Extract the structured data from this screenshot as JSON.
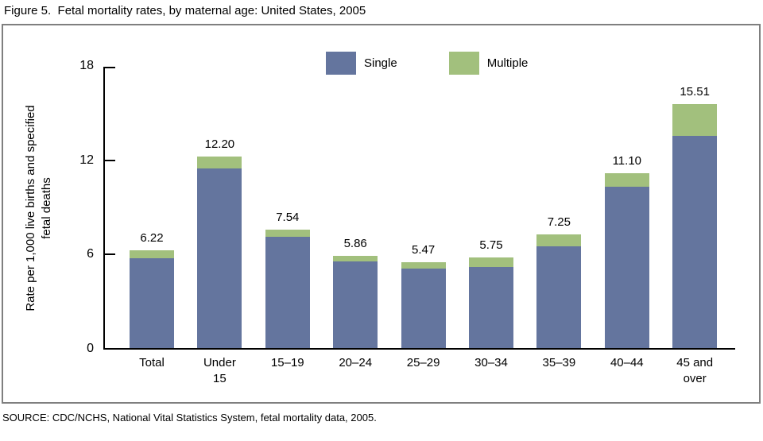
{
  "title": "Figure 5.  Fetal mortality rates, by maternal age: United States, 2005",
  "source": "SOURCE: CDC/NCHS, National Vital Statistics System, fetal mortality data, 2005.",
  "legend": {
    "single_label": "Single",
    "multiple_label": "Multiple"
  },
  "colors": {
    "single": "#64759E",
    "multiple": "#A2C07D",
    "axis": "#000000",
    "frame": "#7F7F7F"
  },
  "y_axis": {
    "label_line1": "Rate per 1,000 live births and specified",
    "label_line2": "fetal deaths",
    "ticks": [
      0,
      6,
      12,
      18
    ]
  },
  "chart_data": {
    "type": "bar",
    "stacked": true,
    "title": "Fetal mortality rates, by maternal age: United States, 2005",
    "xlabel": "",
    "ylabel": "Rate per 1,000 live births and specified fetal deaths",
    "ylim": [
      0,
      18
    ],
    "grid": false,
    "legend_position": "top-center-inside",
    "categories": [
      "Total",
      "Under\n15",
      "15–19",
      "20–24",
      "25–29",
      "30–34",
      "35–39",
      "40–44",
      "45 and\nover"
    ],
    "series": [
      {
        "name": "Single",
        "values": [
          5.73,
          11.45,
          7.08,
          5.5,
          5.05,
          5.18,
          6.47,
          10.28,
          13.48
        ]
      },
      {
        "name": "Multiple",
        "values": [
          0.49,
          0.75,
          0.46,
          0.36,
          0.42,
          0.57,
          0.78,
          0.82,
          2.03
        ]
      }
    ],
    "totals": [
      6.22,
      12.2,
      7.54,
      5.86,
      5.47,
      5.75,
      7.25,
      11.1,
      15.51
    ],
    "total_labels": [
      "6.22",
      "12.20",
      "7.54",
      "5.86",
      "5.47",
      "5.75",
      "7.25",
      "11.10",
      "15.51"
    ]
  }
}
